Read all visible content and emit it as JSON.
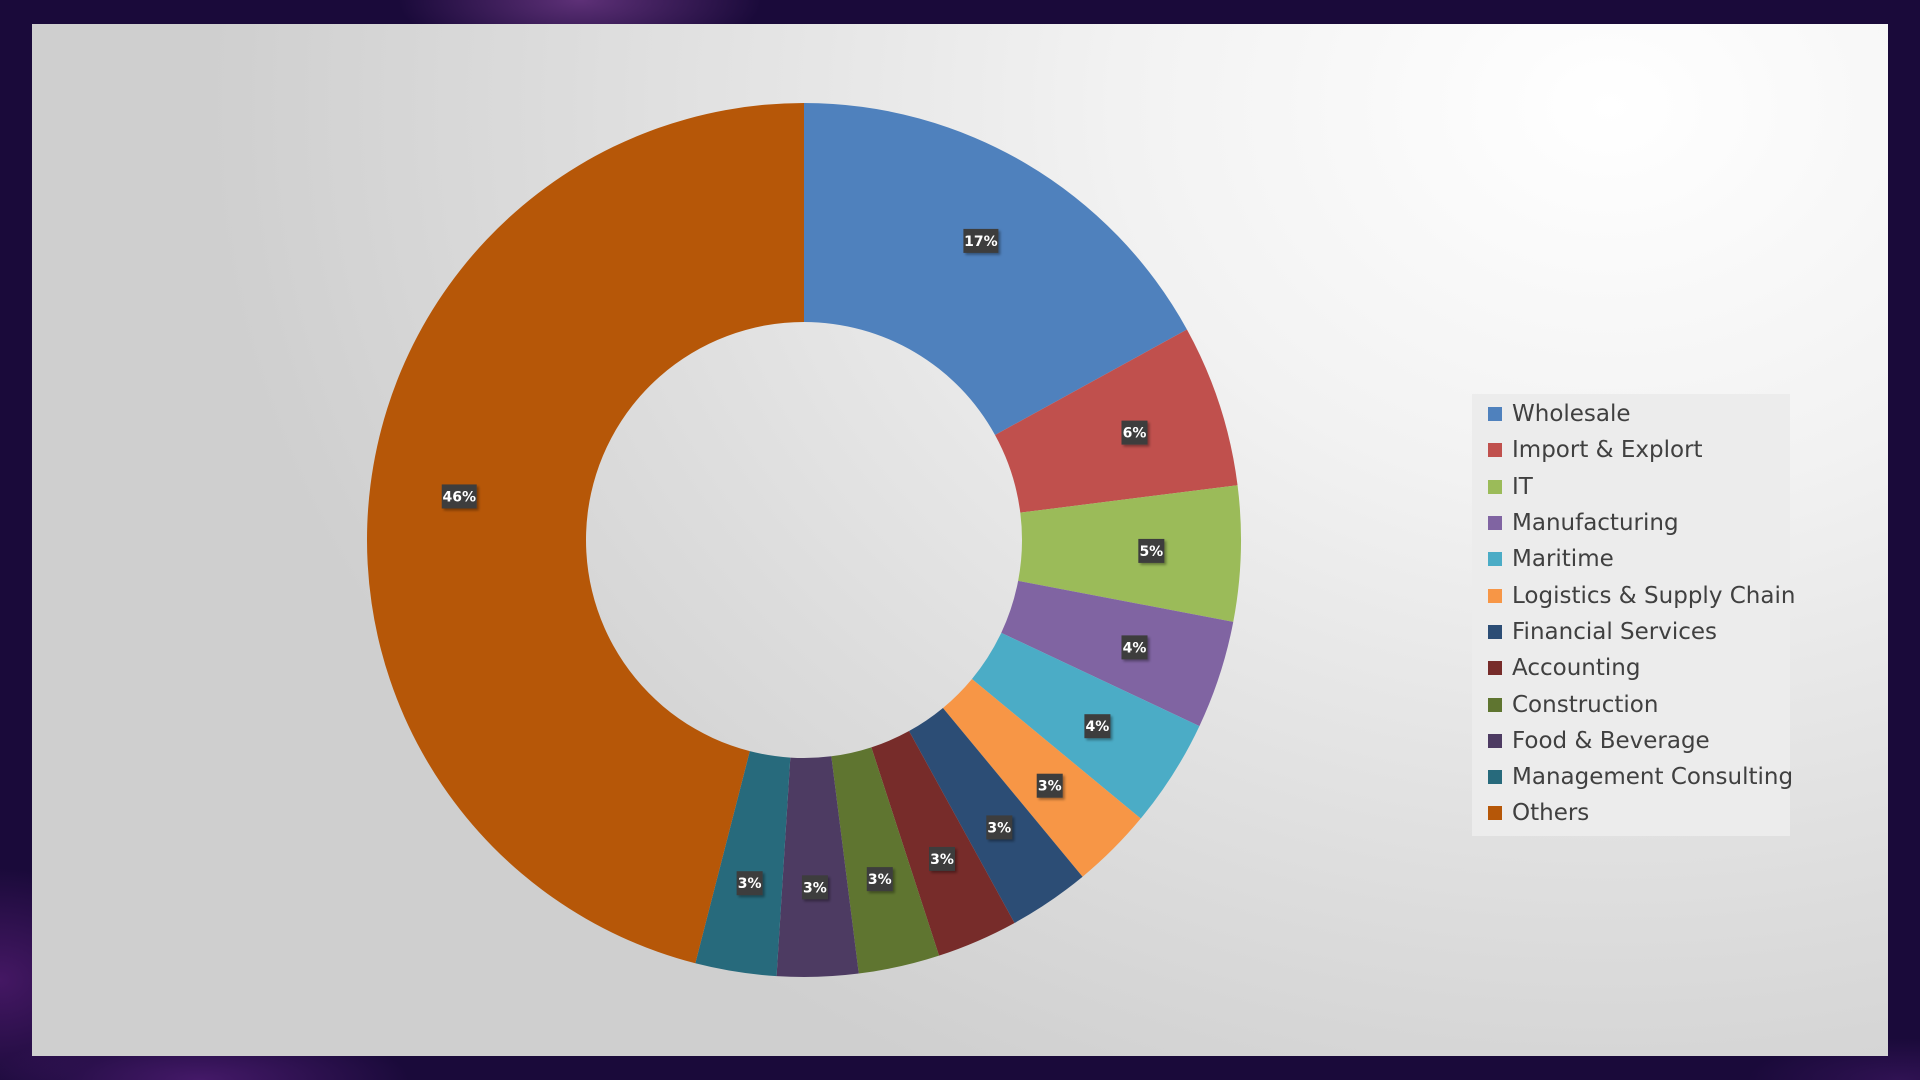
{
  "chart_data": {
    "type": "pie",
    "variant": "donut",
    "categories": [
      "Wholesale",
      "Import & Explort",
      "IT",
      "Manufacturing",
      "Maritime",
      "Logistics & Supply Chain",
      "Financial Services",
      "Accounting",
      "Construction",
      "Food & Beverage",
      "Management Consulting",
      "Others"
    ],
    "values": [
      17,
      6,
      5,
      4,
      4,
      3,
      3,
      3,
      3,
      3,
      3,
      46
    ],
    "data_labels": [
      "17%",
      "6%",
      "5%",
      "4%",
      "4%",
      "3%",
      "3%",
      "3%",
      "3%",
      "3%",
      "3%",
      "46%"
    ],
    "colors": [
      "#4f81bd",
      "#c0504d",
      "#9bbb59",
      "#8064a2",
      "#4bacc6",
      "#f79646",
      "#2c4d75",
      "#772c2a",
      "#5f7530",
      "#4d3b62",
      "#276a7c",
      "#b65708"
    ],
    "legend_position": "right",
    "start_angle_deg": 0,
    "direction": "clockwise"
  }
}
